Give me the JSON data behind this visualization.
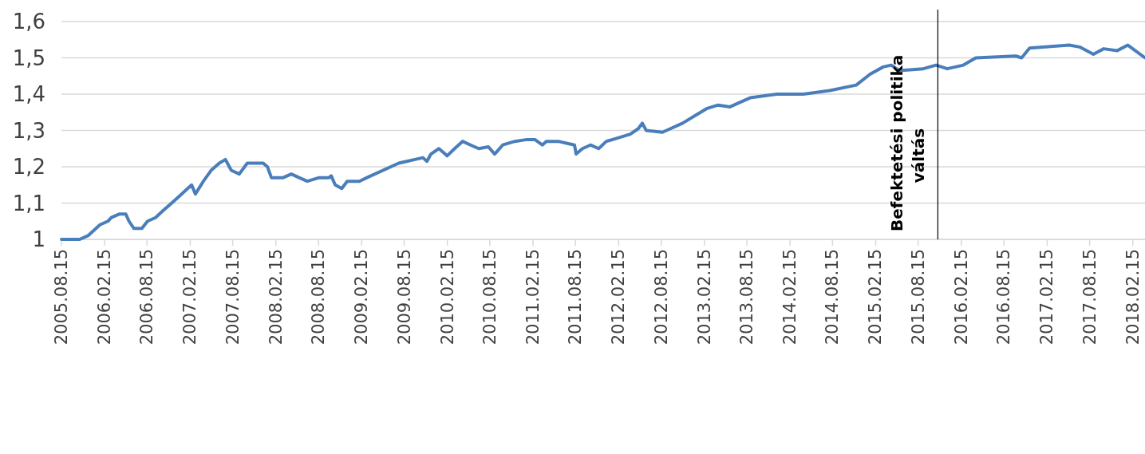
{
  "chart_data": {
    "type": "line",
    "x": [
      "2005-08-15",
      "2005-11-01",
      "2005-12-06",
      "2006-01-26",
      "2006-03-01",
      "2006-03-16",
      "2006-04-20",
      "2006-05-16",
      "2006-05-30",
      "2006-06-20",
      "2006-07-24",
      "2006-08-17",
      "2006-09-20",
      "2006-10-24",
      "2006-11-28",
      "2007-01-01",
      "2007-02-04",
      "2007-02-21",
      "2007-03-09",
      "2007-04-12",
      "2007-05-15",
      "2007-06-19",
      "2007-07-15",
      "2007-08-09",
      "2007-09-12",
      "2007-10-16",
      "2007-11-19",
      "2007-12-23",
      "2008-01-10",
      "2008-01-27",
      "2008-03-17",
      "2008-04-21",
      "2008-05-24",
      "2008-06-28",
      "2008-08-18",
      "2008-09-28",
      "2008-10-08",
      "2008-10-25",
      "2008-11-22",
      "2008-12-15",
      "2009-02-05",
      "2009-03-09",
      "2009-07-23",
      "2009-09-30",
      "2009-11-03",
      "2009-11-20",
      "2009-12-07",
      "2010-01-10",
      "2010-01-28",
      "2010-02-14",
      "2010-03-18",
      "2010-04-21",
      "2010-05-25",
      "2010-06-29",
      "2010-08-09",
      "2010-09-05",
      "2010-10-09",
      "2010-11-30",
      "2011-01-20",
      "2011-02-23",
      "2011-03-27",
      "2011-04-13",
      "2011-06-03",
      "2011-07-08",
      "2011-08-11",
      "2011-08-18",
      "2011-09-14",
      "2011-10-18",
      "2011-11-22",
      "2011-12-25",
      "2012-02-15",
      "2012-04-05",
      "2012-05-09",
      "2012-05-26",
      "2012-06-12",
      "2012-08-20",
      "2012-09-23",
      "2012-11-14",
      "2013-01-04",
      "2013-02-24",
      "2013-04-14",
      "2013-06-04",
      "2013-07-08",
      "2013-08-29",
      "2013-12-20",
      "2014-04-12",
      "2014-08-03",
      "2014-11-24",
      "2015-01-22",
      "2015-03-19",
      "2015-04-22",
      "2015-05-26",
      "2015-09-06",
      "2015-10-30",
      "2015-12-17",
      "2016-02-24",
      "2016-04-17",
      "2016-10-05",
      "2016-10-29",
      "2016-12-02",
      "2017-05-20",
      "2017-07-03",
      "2017-08-31",
      "2017-10-14",
      "2017-12-11",
      "2018-01-25",
      "2018-04-08"
    ],
    "series": [
      {
        "color": "#4a7ebb",
        "values": [
          1.0,
          1.0,
          1.01,
          1.04,
          1.05,
          1.06,
          1.07,
          1.07,
          1.05,
          1.03,
          1.03,
          1.05,
          1.06,
          1.08,
          1.1,
          1.12,
          1.14,
          1.15,
          1.125,
          1.16,
          1.19,
          1.21,
          1.22,
          1.19,
          1.18,
          1.21,
          1.21,
          1.21,
          1.2,
          1.17,
          1.17,
          1.18,
          1.17,
          1.16,
          1.17,
          1.17,
          1.175,
          1.15,
          1.14,
          1.16,
          1.16,
          1.17,
          1.21,
          1.22,
          1.225,
          1.215,
          1.235,
          1.25,
          1.24,
          1.23,
          1.25,
          1.27,
          1.26,
          1.25,
          1.255,
          1.235,
          1.26,
          1.27,
          1.275,
          1.275,
          1.26,
          1.27,
          1.27,
          1.265,
          1.26,
          1.235,
          1.25,
          1.26,
          1.25,
          1.27,
          1.28,
          1.29,
          1.305,
          1.32,
          1.3,
          1.295,
          1.305,
          1.32,
          1.34,
          1.36,
          1.37,
          1.365,
          1.375,
          1.39,
          1.4,
          1.4,
          1.41,
          1.425,
          1.455,
          1.475,
          1.48,
          1.465,
          1.47,
          1.48,
          1.47,
          1.48,
          1.5,
          1.505,
          1.5,
          1.527,
          1.535,
          1.53,
          1.51,
          1.525,
          1.52,
          1.535,
          1.5
        ]
      }
    ],
    "xlim": [
      "2005-08-15",
      "2018-04-08"
    ],
    "xticks": [
      {
        "value": "2005-08-15",
        "label": "2005.08.15"
      },
      {
        "value": "2006-02-15",
        "label": "2006.02.15"
      },
      {
        "value": "2006-08-15",
        "label": "2006.08.15"
      },
      {
        "value": "2007-02-15",
        "label": "2007.02.15"
      },
      {
        "value": "2007-08-15",
        "label": "2007.08.15"
      },
      {
        "value": "2008-02-15",
        "label": "2008.02.15"
      },
      {
        "value": "2008-08-15",
        "label": "2008.08.15"
      },
      {
        "value": "2009-02-15",
        "label": "2009.02.15"
      },
      {
        "value": "2009-08-15",
        "label": "2009.08.15"
      },
      {
        "value": "2010-02-15",
        "label": "2010.02.15"
      },
      {
        "value": "2010-08-15",
        "label": "2010.08.15"
      },
      {
        "value": "2011-02-15",
        "label": "2011.02.15"
      },
      {
        "value": "2011-08-15",
        "label": "2011.08.15"
      },
      {
        "value": "2012-02-15",
        "label": "2012.02.15"
      },
      {
        "value": "2012-08-15",
        "label": "2012.08.15"
      },
      {
        "value": "2013-02-15",
        "label": "2013.02.15"
      },
      {
        "value": "2013-08-15",
        "label": "2013.08.15"
      },
      {
        "value": "2014-02-15",
        "label": "2014.02.15"
      },
      {
        "value": "2014-08-15",
        "label": "2014.08.15"
      },
      {
        "value": "2015-02-15",
        "label": "2015.02.15"
      },
      {
        "value": "2015-08-15",
        "label": "2015.08.15"
      },
      {
        "value": "2016-02-15",
        "label": "2016.02.15"
      },
      {
        "value": "2016-08-15",
        "label": "2016.08.15"
      },
      {
        "value": "2017-02-15",
        "label": "2017.02.15"
      },
      {
        "value": "2017-08-15",
        "label": "2017.08.15"
      },
      {
        "value": "2018-02-15",
        "label": "2018.02.15"
      }
    ],
    "ylim": [
      1,
      1.6
    ],
    "yticks": [
      1,
      {
        "value": 1.1,
        "label": "1,1"
      },
      {
        "value": 1.2,
        "label": "1,2"
      },
      {
        "value": 1.3,
        "label": "1,3"
      },
      {
        "value": 1.4,
        "label": "1,4"
      },
      {
        "value": 1.5,
        "label": "1,5"
      },
      {
        "value": 1.6,
        "label": "1,6"
      }
    ],
    "grid": "y",
    "line_style": "solid",
    "ref_lines": [
      {
        "axis": "x",
        "value": "2015-11-07",
        "label": "Befektetési politika váltás",
        "color": "#000000"
      }
    ]
  }
}
